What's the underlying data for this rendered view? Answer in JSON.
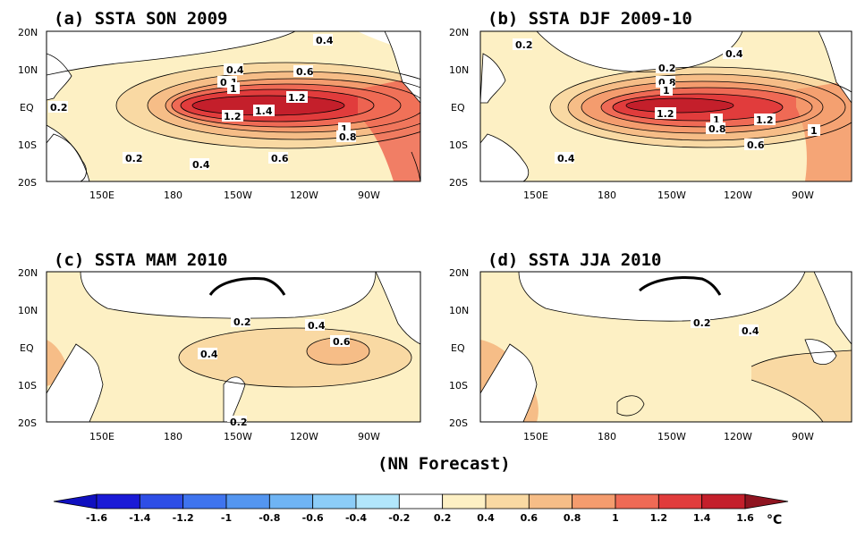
{
  "lon_ticks": [
    "150E",
    "180",
    "150W",
    "120W",
    "90W"
  ],
  "lat_ticks": [
    "20N",
    "10N",
    "EQ",
    "10S",
    "20S"
  ],
  "panels": [
    {
      "title": "(a) SSTA SON 2009",
      "contour_labels": [
        "0.4",
        "0.2",
        "0.4",
        "0.6",
        "0.1",
        "1",
        "1.2",
        "1.2",
        "1.4",
        "1",
        "0.8",
        "0.2",
        "0.4",
        "0.6"
      ]
    },
    {
      "title": "(b) SSTA DJF 2009-10",
      "contour_labels": [
        "0.2",
        "0.4",
        "0.2",
        "0.8",
        "1",
        "1.2",
        "1",
        "0.8",
        "1.2",
        "1",
        "0.4",
        "0.6"
      ]
    },
    {
      "title": "(c) SSTA MAM 2010",
      "contour_labels": [
        "0.2",
        "0.4",
        "0.4",
        "0.6",
        "0.2"
      ]
    },
    {
      "title": "(d) SSTA JJA 2010",
      "contour_labels": [
        "0.2",
        "0.4"
      ]
    }
  ],
  "footer_label": "(NN Forecast)",
  "colorbar": {
    "labels": [
      "-1.6",
      "-1.4",
      "-1.2",
      "-1",
      "-0.8",
      "-0.6",
      "-0.4",
      "-0.2",
      "0.2",
      "0.4",
      "0.6",
      "0.8",
      "1",
      "1.2",
      "1.4",
      "1.6"
    ],
    "unit": "°C",
    "colors": [
      "#1a1ad6",
      "#2e4ee6",
      "#3f74ee",
      "#5496f0",
      "#6fb4f4",
      "#8ccdf8",
      "#b2e6fb",
      "#ffffff",
      "#fdf0c4",
      "#f9d9a3",
      "#f6bd87",
      "#f49c6e",
      "#ef6a55",
      "#e13c3c",
      "#c41f2b"
    ]
  },
  "land_color": "#ffffff"
}
